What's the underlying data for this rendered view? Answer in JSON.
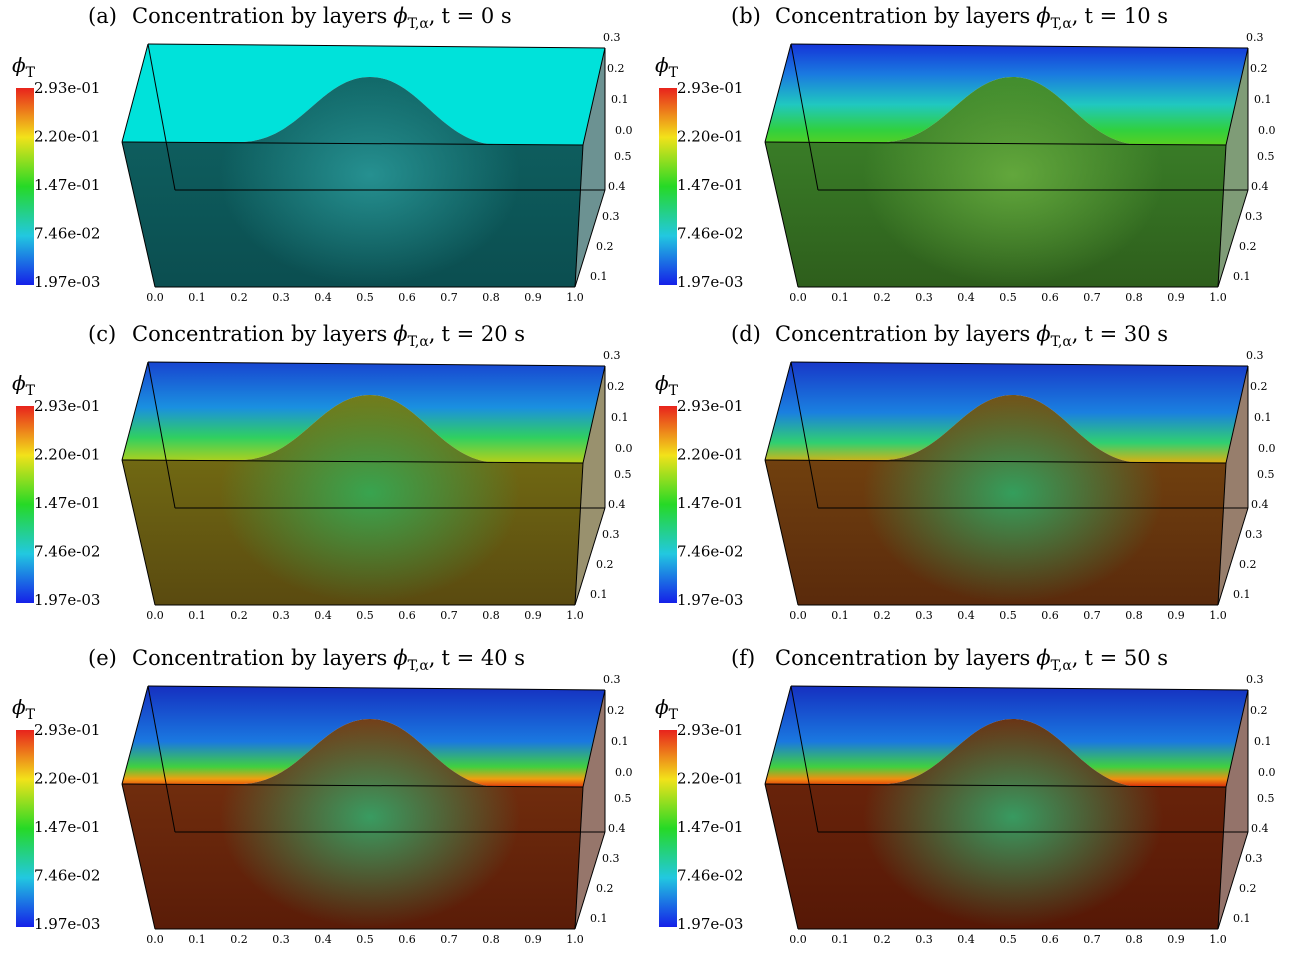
{
  "panels": [
    {
      "label": "(a)",
      "title": "Concentration by layers",
      "symbol": "ϕ",
      "subscript": "T,α",
      "time": "t = 0 s"
    },
    {
      "label": "(b)",
      "title": "Concentration by layers",
      "symbol": "ϕ",
      "subscript": "T,α",
      "time": "t = 10 s"
    },
    {
      "label": "(c)",
      "title": "Concentration by layers",
      "symbol": "ϕ",
      "subscript": "T,α",
      "time": "t = 20 s"
    },
    {
      "label": "(d)",
      "title": "Concentration by layers",
      "symbol": "ϕ",
      "subscript": "T,α",
      "time": "t = 30 s"
    },
    {
      "label": "(e)",
      "title": "Concentration by layers",
      "symbol": "ϕ",
      "subscript": "T,α",
      "time": "t = 40 s"
    },
    {
      "label": "(f)",
      "title": "Concentration by layers",
      "symbol": "ϕ",
      "subscript": "T,α",
      "time": "t = 50 s"
    }
  ],
  "colorbar": {
    "symbol": "ϕ",
    "subscript": "T",
    "labels": [
      "2.93e-01",
      "2.20e-01",
      "1.47e-01",
      "7.46e-02",
      "1.97e-03"
    ]
  },
  "axes": {
    "x_ticks": [
      "0.0",
      "0.1",
      "0.2",
      "0.3",
      "0.4",
      "0.5",
      "0.6",
      "0.7",
      "0.8",
      "0.9",
      "1.0"
    ],
    "depth_ticks": [
      "0.1",
      "0.2",
      "0.3",
      "0.4",
      "0.5"
    ],
    "height_ticks": [
      "0.0",
      "0.1",
      "0.2",
      "0.3"
    ]
  }
}
